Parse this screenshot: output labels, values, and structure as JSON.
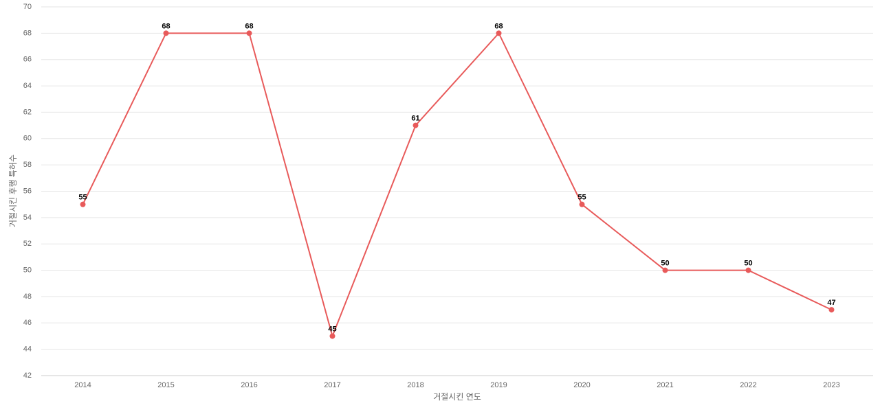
{
  "chart_data": {
    "type": "line",
    "x_label": "거절시킨 연도",
    "y_label": "거절시킨 후행 특허수",
    "categories": [
      "2014",
      "2015",
      "2016",
      "2017",
      "2018",
      "2019",
      "2020",
      "2021",
      "2022",
      "2023"
    ],
    "series": [
      {
        "name": "거절시킨 후행 특허수",
        "color": "#e85a5a",
        "values": [
          55,
          68,
          68,
          45,
          61,
          68,
          55,
          50,
          50,
          47
        ]
      }
    ],
    "ylim": [
      42,
      70
    ],
    "yticks": [
      42,
      44,
      46,
      48,
      50,
      52,
      54,
      56,
      58,
      60,
      62,
      64,
      66,
      68,
      70
    ],
    "grid": true
  }
}
